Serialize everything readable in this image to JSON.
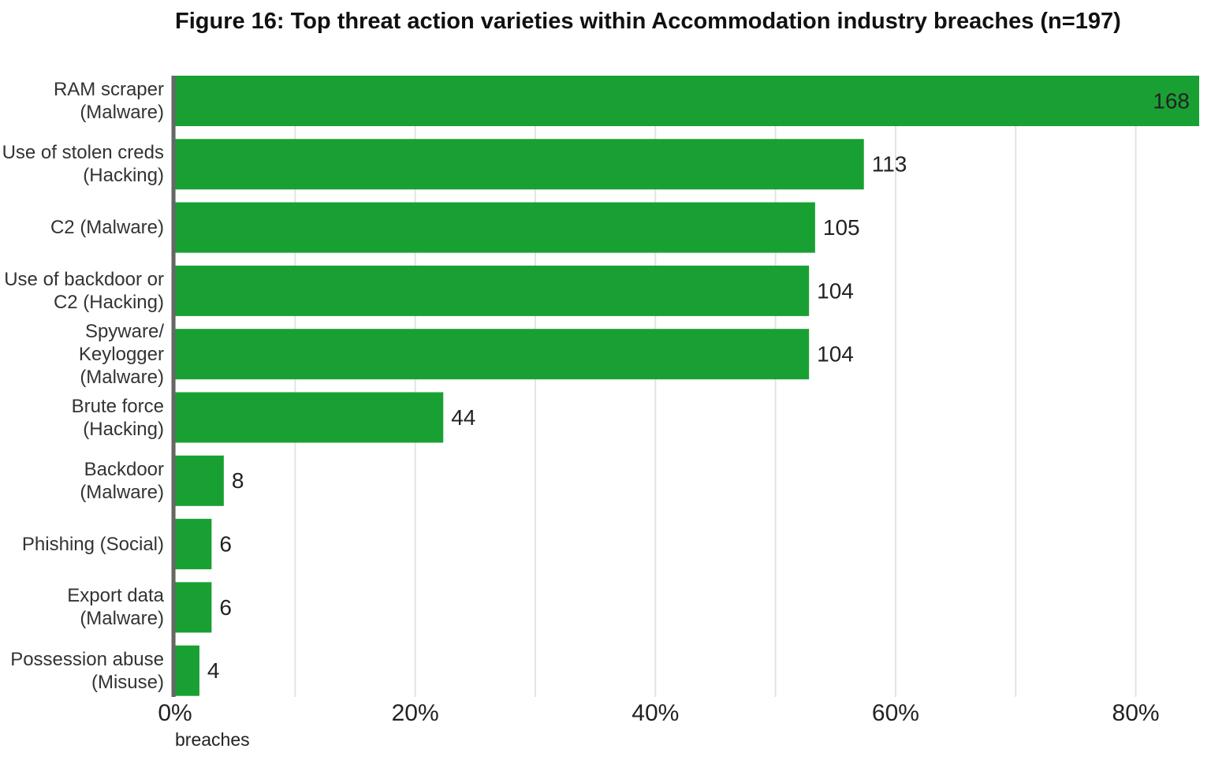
{
  "chart_data": {
    "type": "bar",
    "orientation": "horizontal",
    "title": "Figure 16: Top threat action varieties within Accommodation industry breaches (n=197)",
    "x_label": "breaches",
    "categories": [
      "RAM scraper (Malware)",
      "Use of stolen creds (Hacking)",
      "C2 (Malware)",
      "Use of backdoor or C2 (Hacking)",
      "Spyware/ Keylogger (Malware)",
      "Brute force (Hacking)",
      "Backdoor (Malware)",
      "Phishing (Social)",
      "Export data (Malware)",
      "Possession abuse (Misuse)"
    ],
    "values": [
      168,
      113,
      105,
      104,
      104,
      44,
      8,
      6,
      6,
      4
    ],
    "color": "#19a033",
    "xlim": [
      0,
      168
    ],
    "xticks": [
      {
        "value": 0,
        "label": "0%"
      },
      {
        "value": 39.4,
        "label": "20%"
      },
      {
        "value": 78.8,
        "label": "40%"
      },
      {
        "value": 118.2,
        "label": "60%"
      },
      {
        "value": 157.6,
        "label": "80%"
      }
    ],
    "xminorticks": [
      19.7,
      59.1,
      98.5,
      137.9
    ],
    "grid": true
  }
}
